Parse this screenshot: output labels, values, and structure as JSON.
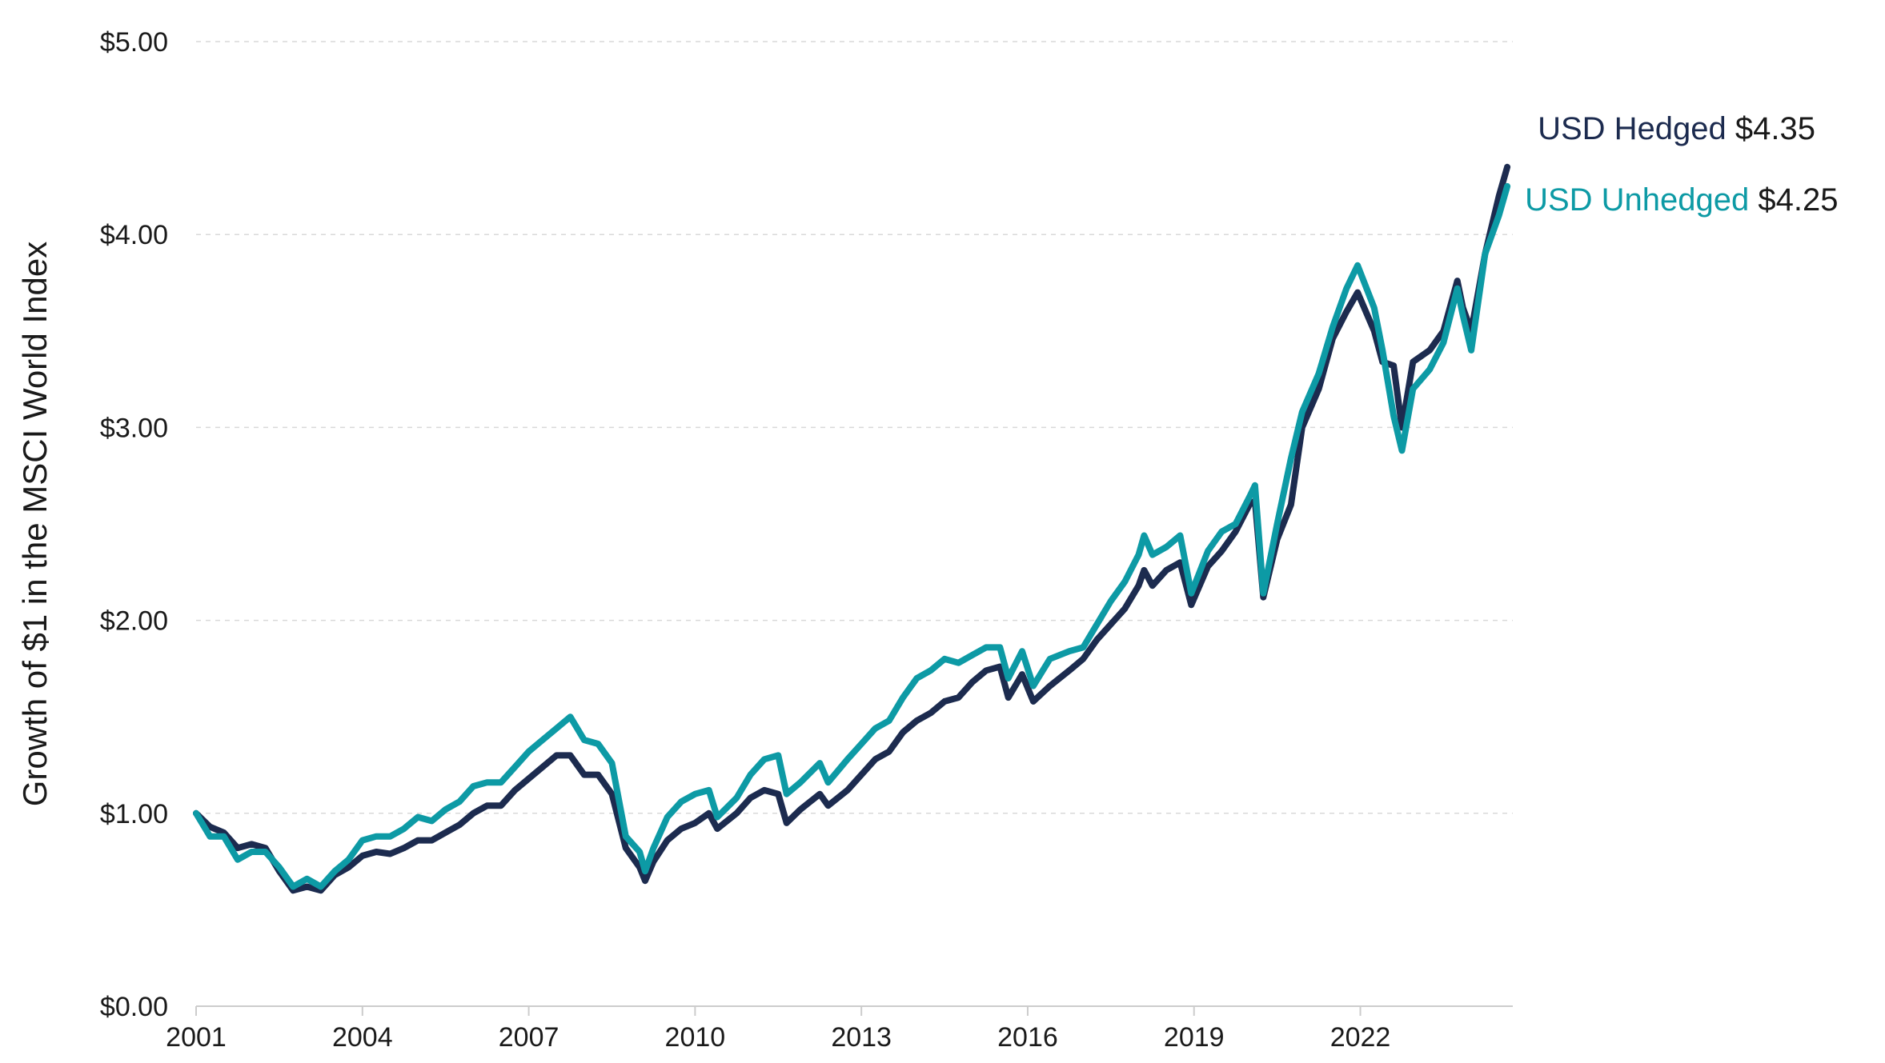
{
  "chart_data": {
    "type": "line",
    "ylabel": "Growth of $1 in the MSCI World Index",
    "xlabel": "",
    "ylim": [
      0,
      5
    ],
    "xlim": [
      2001,
      2024.75
    ],
    "y_ticks": [
      0,
      1,
      2,
      3,
      4,
      5
    ],
    "y_tick_labels": [
      "$0.00",
      "$1.00",
      "$2.00",
      "$3.00",
      "$4.00",
      "$5.00"
    ],
    "x_ticks": [
      2001,
      2004,
      2007,
      2010,
      2013,
      2016,
      2019,
      2022
    ],
    "x_tick_labels": [
      "2001",
      "2004",
      "2007",
      "2010",
      "2013",
      "2016",
      "2019",
      "2022"
    ],
    "grid": "horizontal dashed",
    "legend": "end-of-line labels",
    "series": [
      {
        "name": "USD Hedged",
        "end_value_label": "$4.35",
        "color": "#1c2b4f",
        "points": [
          [
            2001.0,
            1.0
          ],
          [
            2001.25,
            0.93
          ],
          [
            2001.5,
            0.9
          ],
          [
            2001.75,
            0.82
          ],
          [
            2002.0,
            0.84
          ],
          [
            2002.25,
            0.82
          ],
          [
            2002.5,
            0.7
          ],
          [
            2002.75,
            0.6
          ],
          [
            2003.0,
            0.62
          ],
          [
            2003.25,
            0.6
          ],
          [
            2003.5,
            0.68
          ],
          [
            2003.75,
            0.72
          ],
          [
            2004.0,
            0.78
          ],
          [
            2004.25,
            0.8
          ],
          [
            2004.5,
            0.79
          ],
          [
            2004.75,
            0.82
          ],
          [
            2005.0,
            0.86
          ],
          [
            2005.25,
            0.86
          ],
          [
            2005.5,
            0.9
          ],
          [
            2005.75,
            0.94
          ],
          [
            2006.0,
            1.0
          ],
          [
            2006.25,
            1.04
          ],
          [
            2006.5,
            1.04
          ],
          [
            2006.75,
            1.12
          ],
          [
            2007.0,
            1.18
          ],
          [
            2007.25,
            1.24
          ],
          [
            2007.5,
            1.3
          ],
          [
            2007.75,
            1.3
          ],
          [
            2008.0,
            1.2
          ],
          [
            2008.25,
            1.2
          ],
          [
            2008.5,
            1.1
          ],
          [
            2008.75,
            0.82
          ],
          [
            2009.0,
            0.72
          ],
          [
            2009.1,
            0.65
          ],
          [
            2009.25,
            0.75
          ],
          [
            2009.5,
            0.86
          ],
          [
            2009.75,
            0.92
          ],
          [
            2010.0,
            0.95
          ],
          [
            2010.25,
            1.0
          ],
          [
            2010.4,
            0.92
          ],
          [
            2010.75,
            1.0
          ],
          [
            2011.0,
            1.08
          ],
          [
            2011.25,
            1.12
          ],
          [
            2011.5,
            1.1
          ],
          [
            2011.65,
            0.95
          ],
          [
            2011.9,
            1.02
          ],
          [
            2012.25,
            1.1
          ],
          [
            2012.4,
            1.04
          ],
          [
            2012.75,
            1.12
          ],
          [
            2013.0,
            1.2
          ],
          [
            2013.25,
            1.28
          ],
          [
            2013.5,
            1.32
          ],
          [
            2013.75,
            1.42
          ],
          [
            2014.0,
            1.48
          ],
          [
            2014.25,
            1.52
          ],
          [
            2014.5,
            1.58
          ],
          [
            2014.75,
            1.6
          ],
          [
            2015.0,
            1.68
          ],
          [
            2015.25,
            1.74
          ],
          [
            2015.5,
            1.76
          ],
          [
            2015.65,
            1.6
          ],
          [
            2015.9,
            1.72
          ],
          [
            2016.1,
            1.58
          ],
          [
            2016.4,
            1.66
          ],
          [
            2016.75,
            1.74
          ],
          [
            2017.0,
            1.8
          ],
          [
            2017.25,
            1.9
          ],
          [
            2017.5,
            1.98
          ],
          [
            2017.75,
            2.06
          ],
          [
            2018.0,
            2.18
          ],
          [
            2018.1,
            2.26
          ],
          [
            2018.25,
            2.18
          ],
          [
            2018.5,
            2.26
          ],
          [
            2018.75,
            2.3
          ],
          [
            2018.95,
            2.08
          ],
          [
            2019.25,
            2.28
          ],
          [
            2019.5,
            2.36
          ],
          [
            2019.75,
            2.46
          ],
          [
            2020.0,
            2.6
          ],
          [
            2020.1,
            2.62
          ],
          [
            2020.25,
            2.12
          ],
          [
            2020.5,
            2.42
          ],
          [
            2020.75,
            2.6
          ],
          [
            2020.95,
            3.0
          ],
          [
            2021.25,
            3.2
          ],
          [
            2021.5,
            3.46
          ],
          [
            2021.75,
            3.6
          ],
          [
            2021.95,
            3.7
          ],
          [
            2022.25,
            3.5
          ],
          [
            2022.4,
            3.34
          ],
          [
            2022.6,
            3.32
          ],
          [
            2022.75,
            3.0
          ],
          [
            2022.95,
            3.34
          ],
          [
            2023.25,
            3.4
          ],
          [
            2023.5,
            3.5
          ],
          [
            2023.75,
            3.76
          ],
          [
            2023.85,
            3.62
          ],
          [
            2024.0,
            3.5
          ],
          [
            2024.25,
            3.9
          ],
          [
            2024.5,
            4.2
          ],
          [
            2024.65,
            4.35
          ]
        ]
      },
      {
        "name": "USD Unhedged",
        "end_value_label": "$4.25",
        "color": "#0d9aa5",
        "points": [
          [
            2001.0,
            1.0
          ],
          [
            2001.25,
            0.88
          ],
          [
            2001.5,
            0.88
          ],
          [
            2001.75,
            0.76
          ],
          [
            2002.0,
            0.8
          ],
          [
            2002.25,
            0.8
          ],
          [
            2002.5,
            0.72
          ],
          [
            2002.75,
            0.62
          ],
          [
            2003.0,
            0.66
          ],
          [
            2003.25,
            0.62
          ],
          [
            2003.5,
            0.7
          ],
          [
            2003.75,
            0.76
          ],
          [
            2004.0,
            0.86
          ],
          [
            2004.25,
            0.88
          ],
          [
            2004.5,
            0.88
          ],
          [
            2004.75,
            0.92
          ],
          [
            2005.0,
            0.98
          ],
          [
            2005.25,
            0.96
          ],
          [
            2005.5,
            1.02
          ],
          [
            2005.75,
            1.06
          ],
          [
            2006.0,
            1.14
          ],
          [
            2006.25,
            1.16
          ],
          [
            2006.5,
            1.16
          ],
          [
            2006.75,
            1.24
          ],
          [
            2007.0,
            1.32
          ],
          [
            2007.25,
            1.38
          ],
          [
            2007.5,
            1.44
          ],
          [
            2007.75,
            1.5
          ],
          [
            2008.0,
            1.38
          ],
          [
            2008.25,
            1.36
          ],
          [
            2008.5,
            1.26
          ],
          [
            2008.75,
            0.88
          ],
          [
            2009.0,
            0.8
          ],
          [
            2009.1,
            0.7
          ],
          [
            2009.25,
            0.82
          ],
          [
            2009.5,
            0.98
          ],
          [
            2009.75,
            1.06
          ],
          [
            2010.0,
            1.1
          ],
          [
            2010.25,
            1.12
          ],
          [
            2010.4,
            0.98
          ],
          [
            2010.75,
            1.08
          ],
          [
            2011.0,
            1.2
          ],
          [
            2011.25,
            1.28
          ],
          [
            2011.5,
            1.3
          ],
          [
            2011.65,
            1.1
          ],
          [
            2011.9,
            1.16
          ],
          [
            2012.25,
            1.26
          ],
          [
            2012.4,
            1.16
          ],
          [
            2012.75,
            1.28
          ],
          [
            2013.0,
            1.36
          ],
          [
            2013.25,
            1.44
          ],
          [
            2013.5,
            1.48
          ],
          [
            2013.75,
            1.6
          ],
          [
            2014.0,
            1.7
          ],
          [
            2014.25,
            1.74
          ],
          [
            2014.5,
            1.8
          ],
          [
            2014.75,
            1.78
          ],
          [
            2015.0,
            1.82
          ],
          [
            2015.25,
            1.86
          ],
          [
            2015.5,
            1.86
          ],
          [
            2015.65,
            1.7
          ],
          [
            2015.9,
            1.84
          ],
          [
            2016.1,
            1.66
          ],
          [
            2016.4,
            1.8
          ],
          [
            2016.75,
            1.84
          ],
          [
            2017.0,
            1.86
          ],
          [
            2017.25,
            1.98
          ],
          [
            2017.5,
            2.1
          ],
          [
            2017.75,
            2.2
          ],
          [
            2018.0,
            2.34
          ],
          [
            2018.1,
            2.44
          ],
          [
            2018.25,
            2.34
          ],
          [
            2018.5,
            2.38
          ],
          [
            2018.75,
            2.44
          ],
          [
            2018.95,
            2.14
          ],
          [
            2019.25,
            2.36
          ],
          [
            2019.5,
            2.46
          ],
          [
            2019.75,
            2.5
          ],
          [
            2020.0,
            2.64
          ],
          [
            2020.1,
            2.7
          ],
          [
            2020.25,
            2.14
          ],
          [
            2020.5,
            2.5
          ],
          [
            2020.75,
            2.84
          ],
          [
            2020.95,
            3.08
          ],
          [
            2021.25,
            3.28
          ],
          [
            2021.5,
            3.52
          ],
          [
            2021.75,
            3.72
          ],
          [
            2021.95,
            3.84
          ],
          [
            2022.25,
            3.62
          ],
          [
            2022.4,
            3.4
          ],
          [
            2022.6,
            3.06
          ],
          [
            2022.75,
            2.88
          ],
          [
            2022.95,
            3.2
          ],
          [
            2023.25,
            3.3
          ],
          [
            2023.5,
            3.44
          ],
          [
            2023.75,
            3.72
          ],
          [
            2023.85,
            3.58
          ],
          [
            2024.0,
            3.4
          ],
          [
            2024.25,
            3.9
          ],
          [
            2024.5,
            4.1
          ],
          [
            2024.65,
            4.25
          ]
        ]
      }
    ]
  }
}
